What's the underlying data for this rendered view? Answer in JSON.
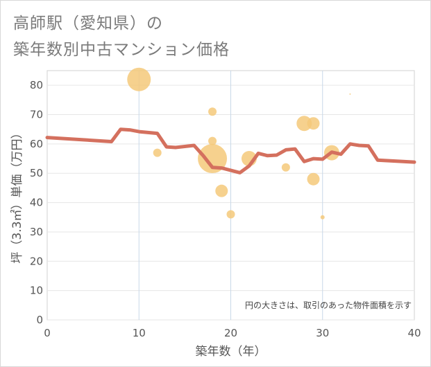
{
  "chart_data": {
    "type": "scatter",
    "title_lines": [
      "高師駅（愛知県）の",
      "築年数別中古マンション価格"
    ],
    "xlabel": "築年数（年）",
    "ylabel": "坪（3.3㎡）単価（万円）",
    "xlim": [
      0,
      40
    ],
    "ylim": [
      0,
      85
    ],
    "x_ticks": [
      0,
      10,
      20,
      30,
      40
    ],
    "y_ticks": [
      0,
      10,
      20,
      30,
      40,
      50,
      60,
      70,
      80
    ],
    "grid": true,
    "note": "円の大きさは、取引のあった物件面積を示す",
    "colors": {
      "bubble": "#f5c97a",
      "line": "#d4705e",
      "grid": "#c8d8e8",
      "plot_bg": "#ffffff"
    },
    "bubbles": [
      {
        "x": 10,
        "y": 82,
        "r": 17
      },
      {
        "x": 12,
        "y": 57,
        "r": 6
      },
      {
        "x": 18,
        "y": 71,
        "r": 6
      },
      {
        "x": 18,
        "y": 61,
        "r": 6
      },
      {
        "x": 18,
        "y": 55,
        "r": 21
      },
      {
        "x": 19,
        "y": 44,
        "r": 9
      },
      {
        "x": 20,
        "y": 36,
        "r": 6
      },
      {
        "x": 22,
        "y": 55,
        "r": 11
      },
      {
        "x": 26,
        "y": 52,
        "r": 6
      },
      {
        "x": 28,
        "y": 67,
        "r": 11
      },
      {
        "x": 29,
        "y": 67,
        "r": 9
      },
      {
        "x": 29,
        "y": 48,
        "r": 9
      },
      {
        "x": 30,
        "y": 35,
        "r": 3
      },
      {
        "x": 31,
        "y": 57,
        "r": 11
      },
      {
        "x": 33,
        "y": 77,
        "r": 1
      }
    ],
    "trend": [
      [
        0,
        62.2
      ],
      [
        7,
        60.8
      ],
      [
        8,
        65
      ],
      [
        9,
        64.8
      ],
      [
        10,
        64.2
      ],
      [
        12,
        63.6
      ],
      [
        13,
        59
      ],
      [
        14,
        58.8
      ],
      [
        16,
        59.5
      ],
      [
        17,
        56
      ],
      [
        18,
        52
      ],
      [
        19,
        51.8
      ],
      [
        21,
        50.2
      ],
      [
        22,
        52.5
      ],
      [
        23,
        56.8
      ],
      [
        24,
        56
      ],
      [
        25,
        56.2
      ],
      [
        26,
        58
      ],
      [
        27,
        58.3
      ],
      [
        28,
        54
      ],
      [
        29,
        55
      ],
      [
        30,
        54.8
      ],
      [
        31,
        57.2
      ],
      [
        32,
        56.5
      ],
      [
        33,
        60
      ],
      [
        34,
        59.5
      ],
      [
        35,
        59.3
      ],
      [
        36,
        54.5
      ],
      [
        40,
        53.8
      ]
    ]
  }
}
